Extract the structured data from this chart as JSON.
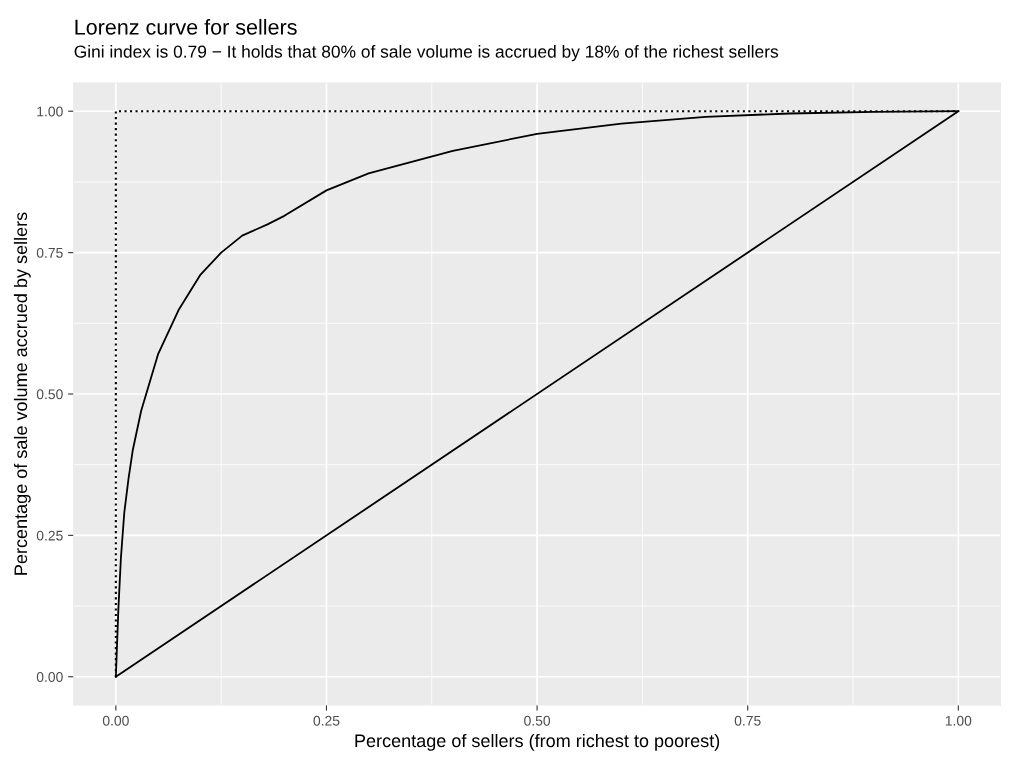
{
  "chart_data": {
    "type": "line",
    "title": "Lorenz curve for sellers",
    "subtitle": "Gini index is 0.79 − It holds that 80% of sale volume is accrued by 18% of the richest sellers",
    "xlabel": "Percentage of sellers (from richest to poorest)",
    "ylabel": "Percentage of sale volume accrued by sellers",
    "series": [
      {
        "color": "#000000",
        "line_style": "solid",
        "x": [
          0,
          0.003,
          0.006,
          0.01,
          0.015,
          0.02,
          0.03,
          0.04,
          0.05,
          0.075,
          0.1,
          0.125,
          0.15,
          0.18,
          0.2,
          0.25,
          0.3,
          0.35,
          0.4,
          0.5,
          0.6,
          0.7,
          0.8,
          0.9,
          1.0
        ],
        "values": [
          0,
          0.12,
          0.21,
          0.29,
          0.35,
          0.4,
          0.47,
          0.52,
          0.57,
          0.65,
          0.71,
          0.75,
          0.78,
          0.8,
          0.815,
          0.86,
          0.89,
          0.91,
          0.93,
          0.96,
          0.978,
          0.99,
          0.996,
          0.999,
          1.0
        ]
      },
      {
        "color": "#000000",
        "line_style": "solid",
        "x": [
          0,
          1
        ],
        "values": [
          0,
          1
        ]
      },
      {
        "color": "#000000",
        "line_style": "dotted",
        "x": [
          0,
          0,
          1
        ],
        "values": [
          0,
          1,
          1
        ]
      }
    ],
    "xlim": [
      -0.05,
      1.05
    ],
    "ylim": [
      -0.05,
      1.05
    ],
    "xticks": [
      {
        "value": 0,
        "label": "0.00"
      },
      {
        "value": 0.125,
        "label": null
      },
      {
        "value": 0.25,
        "label": "0.25"
      },
      {
        "value": 0.375,
        "label": null
      },
      {
        "value": 0.5,
        "label": "0.50"
      },
      {
        "value": 0.625,
        "label": null
      },
      {
        "value": 0.75,
        "label": "0.75"
      },
      {
        "value": 0.875,
        "label": null
      },
      {
        "value": 1,
        "label": "1.00"
      }
    ],
    "yticks": [
      {
        "value": 0,
        "label": "0.00"
      },
      {
        "value": 0.125,
        "label": null
      },
      {
        "value": 0.25,
        "label": "0.25"
      },
      {
        "value": 0.375,
        "label": null
      },
      {
        "value": 0.5,
        "label": "0.50"
      },
      {
        "value": 0.625,
        "label": null
      },
      {
        "value": 0.75,
        "label": "0.75"
      },
      {
        "value": 0.875,
        "label": null
      },
      {
        "value": 1,
        "label": "1.00"
      }
    ],
    "grid": true,
    "legend": false,
    "marker": "none"
  }
}
